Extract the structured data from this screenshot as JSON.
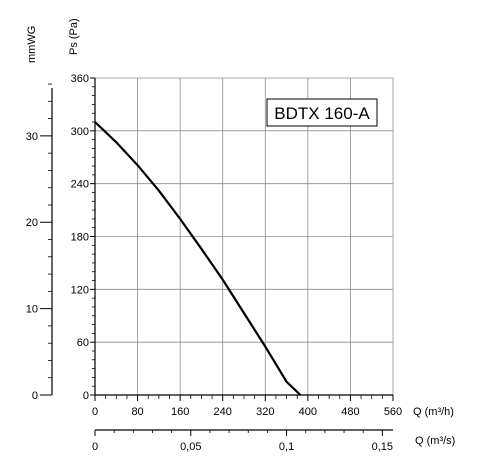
{
  "chart_data": {
    "type": "line",
    "model_label": "BDTX 160-A",
    "primary_x_axis": {
      "label": "Q (m³/h)",
      "range": [
        0,
        560
      ],
      "ticks": [
        "0",
        "80",
        "160",
        "240",
        "320",
        "400",
        "480",
        "560"
      ]
    },
    "secondary_x_axis": {
      "label": "Q (m³/s)",
      "range": [
        0,
        0.15556
      ],
      "ticks": [
        {
          "value": 0,
          "text": "0"
        },
        {
          "value": 0.05,
          "text": "0,05"
        },
        {
          "value": 0.1,
          "text": "0,1"
        },
        {
          "value": 0.15,
          "text": "0,15"
        }
      ]
    },
    "primary_y_axis": {
      "label": "Ps (Pa)",
      "range": [
        0,
        360
      ],
      "ticks": [
        "0",
        "60",
        "120",
        "180",
        "240",
        "300",
        "360"
      ]
    },
    "secondary_y_axis": {
      "label": "mmWG",
      "range": [
        0,
        36.7
      ],
      "ticks": [
        {
          "value": 0,
          "text": "0"
        },
        {
          "value": 10,
          "text": "10"
        },
        {
          "value": 20,
          "text": "20"
        },
        {
          "value": 30,
          "text": "30"
        }
      ]
    },
    "grid": true,
    "series": [
      {
        "name": "BDTX 160-A",
        "points": [
          {
            "x": 0,
            "y": 310
          },
          {
            "x": 40,
            "y": 287
          },
          {
            "x": 80,
            "y": 261
          },
          {
            "x": 120,
            "y": 232
          },
          {
            "x": 160,
            "y": 200
          },
          {
            "x": 200,
            "y": 166
          },
          {
            "x": 240,
            "y": 131
          },
          {
            "x": 280,
            "y": 93
          },
          {
            "x": 320,
            "y": 55
          },
          {
            "x": 360,
            "y": 15
          },
          {
            "x": 386,
            "y": 0
          }
        ]
      }
    ]
  }
}
